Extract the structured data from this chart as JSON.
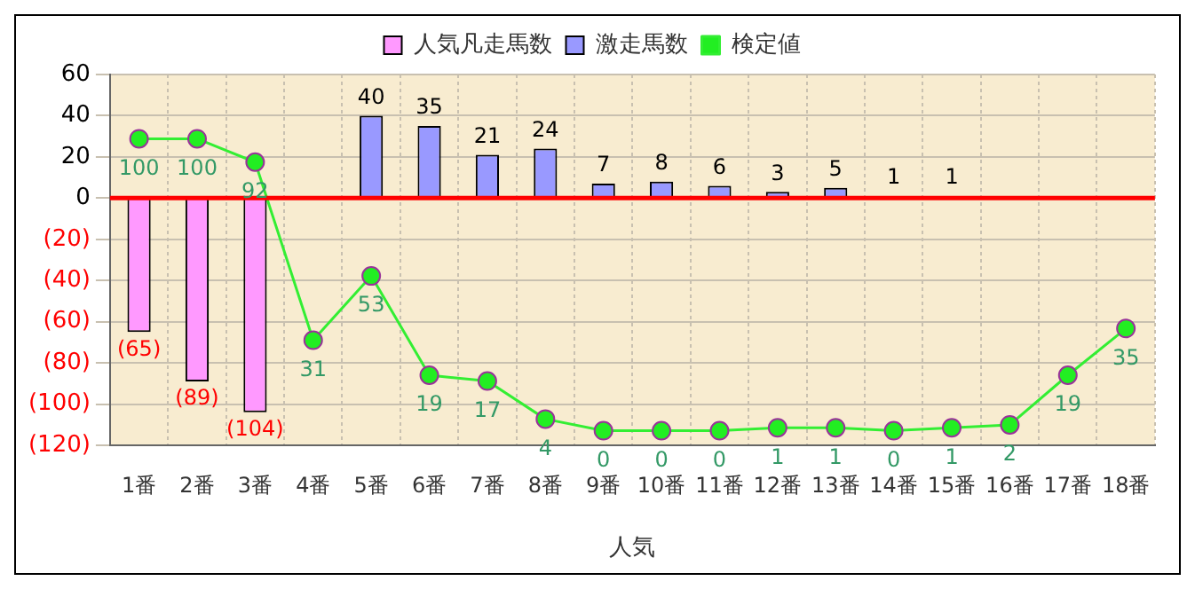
{
  "chart_data": {
    "type": "bar",
    "xlabel": "人気",
    "categories": [
      "1番",
      "2番",
      "3番",
      "4番",
      "5番",
      "6番",
      "7番",
      "8番",
      "9番",
      "10番",
      "11番",
      "12番",
      "13番",
      "14番",
      "15番",
      "16番",
      "17番",
      "18番"
    ],
    "series": [
      {
        "name": "人気凡走馬数",
        "color": "#ff99ff",
        "values": [
          -65,
          -89,
          -104,
          null,
          null,
          null,
          null,
          null,
          null,
          null,
          null,
          null,
          null,
          null,
          null,
          null,
          null,
          null
        ],
        "value_labels": [
          "(65)",
          "(89)",
          "(104)",
          null,
          null,
          null,
          null,
          null,
          null,
          null,
          null,
          null,
          null,
          null,
          null,
          null,
          null,
          null
        ]
      },
      {
        "name": "激走馬数",
        "color": "#9999ff",
        "values": [
          null,
          null,
          null,
          null,
          40,
          35,
          21,
          24,
          7,
          8,
          6,
          3,
          5,
          1,
          1,
          null,
          null,
          null
        ],
        "value_labels": [
          null,
          null,
          null,
          null,
          "40",
          "35",
          "21",
          "24",
          "7",
          "8",
          "6",
          "3",
          "5",
          "1",
          "1",
          null,
          null,
          null
        ]
      },
      {
        "name": "検定値",
        "type": "line",
        "axis": "y2",
        "color": "#33ee33",
        "values": [
          100,
          100,
          92,
          31,
          53,
          19,
          17,
          4,
          0,
          0,
          0,
          1,
          1,
          0,
          1,
          2,
          19,
          35
        ],
        "value_labels": [
          "100",
          "100",
          "92",
          "31",
          "53",
          "19",
          "17",
          "4",
          "0",
          "0",
          "0",
          "1",
          "1",
          "0",
          "1",
          "2",
          "19",
          "35"
        ]
      }
    ],
    "ylim": [
      -120,
      60
    ],
    "yticks": [
      {
        "value": -120,
        "label": "(120)"
      },
      {
        "value": -100,
        "label": "(100)"
      },
      {
        "value": -80,
        "label": "(80)"
      },
      {
        "value": -60,
        "label": "(60)"
      },
      {
        "value": -40,
        "label": "(40)"
      },
      {
        "value": -20,
        "label": "(20)"
      },
      0,
      20,
      40,
      60
    ],
    "y2lim": [
      -5,
      122
    ],
    "ref_lines": [
      {
        "axis": "y",
        "value": 0,
        "color": "#ff0000"
      }
    ],
    "grid": true,
    "legend": "top",
    "marker": "circle",
    "line_style": "solid"
  }
}
